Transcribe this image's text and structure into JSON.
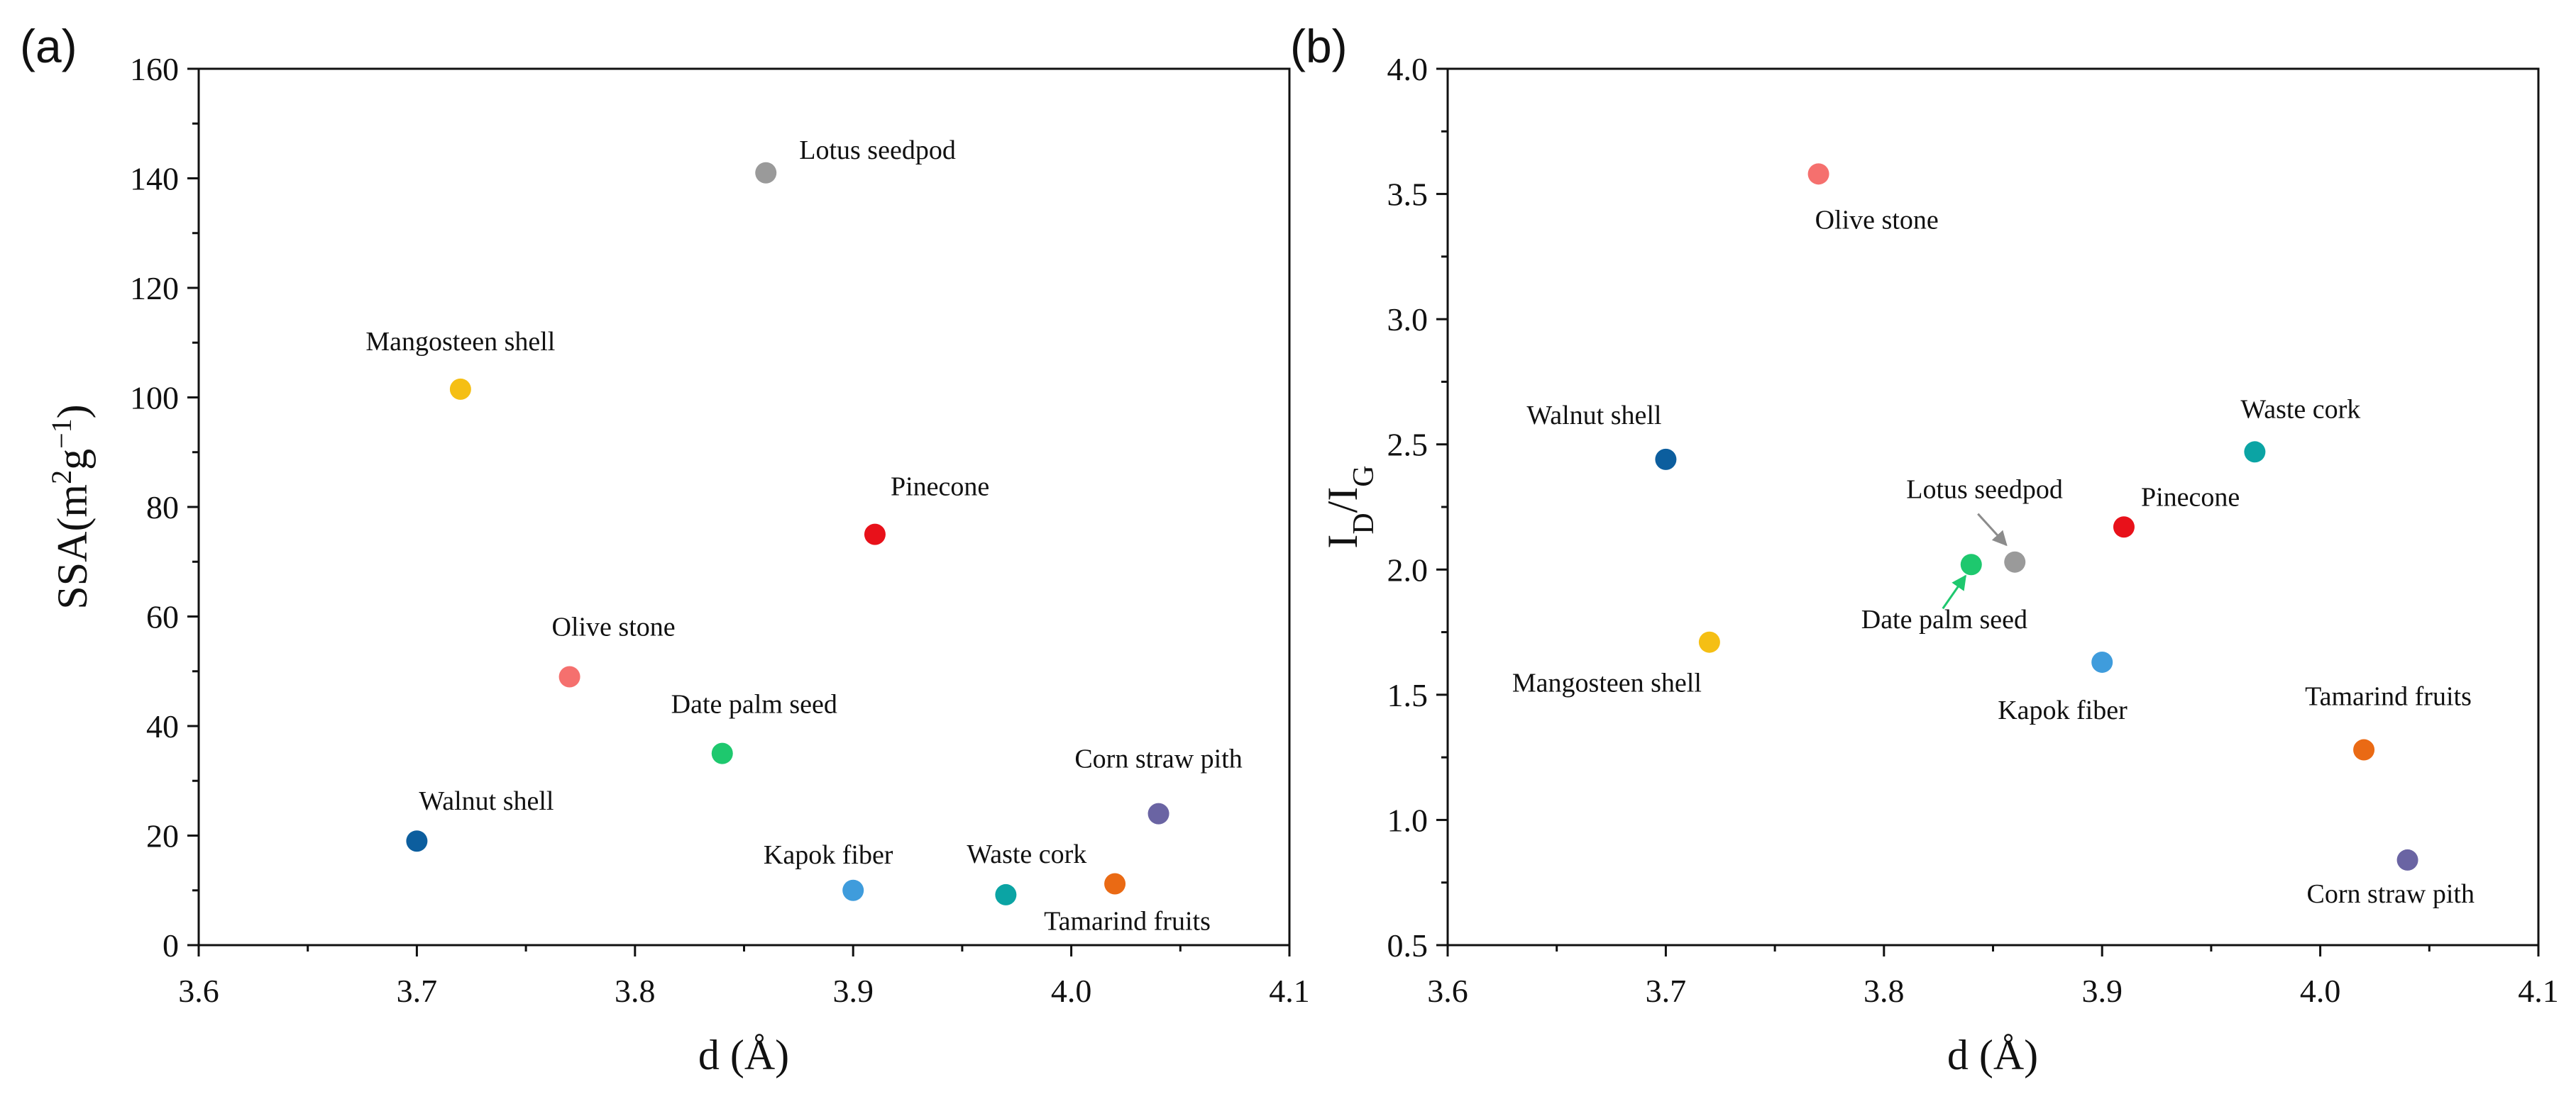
{
  "chart_data": [
    {
      "panel": "(a)",
      "type": "scatter",
      "xlabel": "d (Å)",
      "ylabel": "SSA(m²g⁻¹)",
      "xlim": [
        3.6,
        4.1
      ],
      "ylim": [
        0,
        160
      ],
      "xticks": [
        "3.6",
        "3.7",
        "3.8",
        "3.9",
        "4.0",
        "4.1"
      ],
      "yticks": [
        "0",
        "20",
        "40",
        "60",
        "80",
        "100",
        "120",
        "140",
        "160"
      ],
      "grid": false,
      "points": [
        {
          "label": "Lotus seedpod",
          "x": 3.86,
          "y": 141,
          "color": "#9a9a9a"
        },
        {
          "label": "Mangosteen shell",
          "x": 3.72,
          "y": 101.5,
          "color": "#f5bf14"
        },
        {
          "label": "Pinecone",
          "x": 3.91,
          "y": 75,
          "color": "#e8111a"
        },
        {
          "label": "Olive stone",
          "x": 3.77,
          "y": 49,
          "color": "#f5706e"
        },
        {
          "label": "Date palm seed",
          "x": 3.84,
          "y": 35,
          "color": "#1ec86e"
        },
        {
          "label": "Walnut shell",
          "x": 3.7,
          "y": 19,
          "color": "#0c5e9e"
        },
        {
          "label": "Corn straw pith",
          "x": 4.04,
          "y": 24,
          "color": "#6a64a3"
        },
        {
          "label": "Kapok fiber",
          "x": 3.9,
          "y": 10,
          "color": "#3f9cdc"
        },
        {
          "label": "Waste cork",
          "x": 3.97,
          "y": 9.2,
          "color": "#0ba4a4"
        },
        {
          "label": "Tamarind fruits",
          "x": 4.02,
          "y": 11.2,
          "color": "#ea6a14"
        }
      ]
    },
    {
      "panel": "(b)",
      "type": "scatter",
      "xlabel": "d (Å)",
      "ylabel": "ID/IG",
      "xlim": [
        3.6,
        4.1
      ],
      "ylim": [
        0.5,
        4.0
      ],
      "xticks": [
        "3.6",
        "3.7",
        "3.8",
        "3.9",
        "4.0",
        "4.1"
      ],
      "yticks": [
        "0.5",
        "1.0",
        "1.5",
        "2.0",
        "2.5",
        "3.0",
        "3.5",
        "4.0"
      ],
      "grid": false,
      "points": [
        {
          "label": "Olive stone",
          "x": 3.77,
          "y": 3.58,
          "color": "#f5706e"
        },
        {
          "label": "Walnut shell",
          "x": 3.7,
          "y": 2.44,
          "color": "#0c5e9e"
        },
        {
          "label": "Waste cork",
          "x": 3.97,
          "y": 2.47,
          "color": "#0ba4a4"
        },
        {
          "label": "Lotus seedpod",
          "x": 3.86,
          "y": 2.03,
          "color": "#9a9a9a"
        },
        {
          "label": "Pinecone",
          "x": 3.91,
          "y": 2.17,
          "color": "#e8111a"
        },
        {
          "label": "Date palm seed",
          "x": 3.84,
          "y": 2.02,
          "color": "#1ec86e"
        },
        {
          "label": "Mangosteen shell",
          "x": 3.72,
          "y": 1.71,
          "color": "#f5bf14"
        },
        {
          "label": "Kapok fiber",
          "x": 3.9,
          "y": 1.63,
          "color": "#3f9cdc"
        },
        {
          "label": "Tamarind fruits",
          "x": 4.02,
          "y": 1.28,
          "color": "#ea6a14"
        },
        {
          "label": "Corn straw pith",
          "x": 4.04,
          "y": 0.84,
          "color": "#6a64a3"
        }
      ]
    }
  ]
}
